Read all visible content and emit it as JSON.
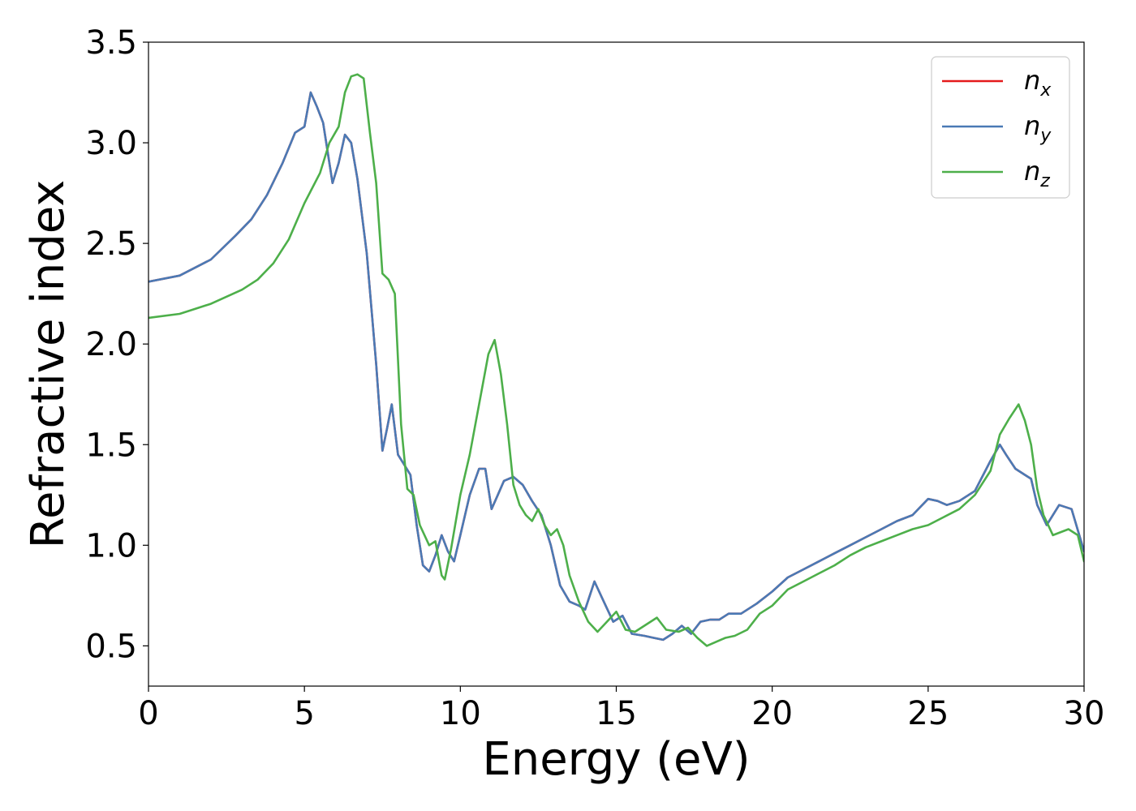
{
  "chart_data": {
    "type": "line",
    "xlabel": "Energy (eV)",
    "ylabel": "Refractive index",
    "xlim": [
      0,
      30
    ],
    "ylim": [
      0.3,
      3.5
    ],
    "xticks": [
      0,
      5,
      10,
      15,
      20,
      25,
      30
    ],
    "xtick_labels": [
      "0",
      "5",
      "10",
      "15",
      "20",
      "25",
      "30"
    ],
    "yticks": [
      0.5,
      1.0,
      1.5,
      2.0,
      2.5,
      3.0,
      3.5
    ],
    "ytick_labels": [
      "0.5",
      "1.0",
      "1.5",
      "2.0",
      "2.5",
      "3.0",
      "3.5"
    ],
    "grid": false,
    "legend_position": "top-right",
    "series": [
      {
        "name": "x",
        "legend_base": "n",
        "legend_sub": "x",
        "color": "#e41a1c",
        "x": [
          0,
          1,
          2,
          2.8,
          3.3,
          3.8,
          4.3,
          4.7,
          5.0,
          5.2,
          5.4,
          5.6,
          5.9,
          6.1,
          6.3,
          6.5,
          6.7,
          7.0,
          7.3,
          7.5,
          7.65,
          7.8,
          8.0,
          8.2,
          8.4,
          8.6,
          8.8,
          9.0,
          9.2,
          9.4,
          9.6,
          9.8,
          10.0,
          10.3,
          10.6,
          10.8,
          11.0,
          11.2,
          11.4,
          11.7,
          12.0,
          12.3,
          12.6,
          12.9,
          13.2,
          13.5,
          13.8,
          14.0,
          14.3,
          14.6,
          14.9,
          15.2,
          15.5,
          15.9,
          16.2,
          16.5,
          16.8,
          17.1,
          17.4,
          17.7,
          18.0,
          18.3,
          18.6,
          19.0,
          19.5,
          20.0,
          20.5,
          21.0,
          21.5,
          22.0,
          22.5,
          23.0,
          23.5,
          24.0,
          24.5,
          25.0,
          25.3,
          25.6,
          26.0,
          26.5,
          27.0,
          27.3,
          27.5,
          27.8,
          28.1,
          28.3,
          28.5,
          28.8,
          29.2,
          29.6,
          30.0
        ],
        "values": [
          2.31,
          2.34,
          2.42,
          2.54,
          2.62,
          2.74,
          2.9,
          3.05,
          3.08,
          3.25,
          3.18,
          3.1,
          2.8,
          2.9,
          3.04,
          3.0,
          2.82,
          2.45,
          1.9,
          1.47,
          1.58,
          1.7,
          1.45,
          1.4,
          1.35,
          1.1,
          0.9,
          0.87,
          0.95,
          1.05,
          0.97,
          0.92,
          1.05,
          1.25,
          1.38,
          1.38,
          1.18,
          1.25,
          1.32,
          1.34,
          1.3,
          1.22,
          1.15,
          1.0,
          0.8,
          0.72,
          0.7,
          0.68,
          0.82,
          0.72,
          0.62,
          0.65,
          0.56,
          0.55,
          0.54,
          0.53,
          0.56,
          0.6,
          0.56,
          0.62,
          0.63,
          0.63,
          0.66,
          0.66,
          0.71,
          0.77,
          0.84,
          0.88,
          0.92,
          0.96,
          1.0,
          1.04,
          1.08,
          1.12,
          1.15,
          1.23,
          1.22,
          1.2,
          1.22,
          1.27,
          1.42,
          1.5,
          1.45,
          1.38,
          1.35,
          1.33,
          1.2,
          1.1,
          1.2,
          1.18,
          0.97
        ]
      },
      {
        "name": "y",
        "legend_base": "n",
        "legend_sub": "y",
        "color": "#4a7ab5",
        "x": [
          0,
          1,
          2,
          2.8,
          3.3,
          3.8,
          4.3,
          4.7,
          5.0,
          5.2,
          5.4,
          5.6,
          5.9,
          6.1,
          6.3,
          6.5,
          6.7,
          7.0,
          7.3,
          7.5,
          7.65,
          7.8,
          8.0,
          8.2,
          8.4,
          8.6,
          8.8,
          9.0,
          9.2,
          9.4,
          9.6,
          9.8,
          10.0,
          10.3,
          10.6,
          10.8,
          11.0,
          11.2,
          11.4,
          11.7,
          12.0,
          12.3,
          12.6,
          12.9,
          13.2,
          13.5,
          13.8,
          14.0,
          14.3,
          14.6,
          14.9,
          15.2,
          15.5,
          15.9,
          16.2,
          16.5,
          16.8,
          17.1,
          17.4,
          17.7,
          18.0,
          18.3,
          18.6,
          19.0,
          19.5,
          20.0,
          20.5,
          21.0,
          21.5,
          22.0,
          22.5,
          23.0,
          23.5,
          24.0,
          24.5,
          25.0,
          25.3,
          25.6,
          26.0,
          26.5,
          27.0,
          27.3,
          27.5,
          27.8,
          28.1,
          28.3,
          28.5,
          28.8,
          29.2,
          29.6,
          30.0
        ],
        "values": [
          2.31,
          2.34,
          2.42,
          2.54,
          2.62,
          2.74,
          2.9,
          3.05,
          3.08,
          3.25,
          3.18,
          3.1,
          2.8,
          2.9,
          3.04,
          3.0,
          2.82,
          2.45,
          1.9,
          1.47,
          1.58,
          1.7,
          1.45,
          1.4,
          1.35,
          1.1,
          0.9,
          0.87,
          0.95,
          1.05,
          0.97,
          0.92,
          1.05,
          1.25,
          1.38,
          1.38,
          1.18,
          1.25,
          1.32,
          1.34,
          1.3,
          1.22,
          1.15,
          1.0,
          0.8,
          0.72,
          0.7,
          0.68,
          0.82,
          0.72,
          0.62,
          0.65,
          0.56,
          0.55,
          0.54,
          0.53,
          0.56,
          0.6,
          0.56,
          0.62,
          0.63,
          0.63,
          0.66,
          0.66,
          0.71,
          0.77,
          0.84,
          0.88,
          0.92,
          0.96,
          1.0,
          1.04,
          1.08,
          1.12,
          1.15,
          1.23,
          1.22,
          1.2,
          1.22,
          1.27,
          1.42,
          1.5,
          1.45,
          1.38,
          1.35,
          1.33,
          1.2,
          1.1,
          1.2,
          1.18,
          0.97
        ]
      },
      {
        "name": "z",
        "legend_base": "n",
        "legend_sub": "z",
        "color": "#4daf4a",
        "x": [
          0,
          1,
          2,
          3,
          3.5,
          4.0,
          4.5,
          5.0,
          5.5,
          5.8,
          6.1,
          6.3,
          6.5,
          6.7,
          6.9,
          7.1,
          7.3,
          7.5,
          7.7,
          7.9,
          8.1,
          8.3,
          8.5,
          8.7,
          9.0,
          9.2,
          9.4,
          9.5,
          9.7,
          10.0,
          10.3,
          10.6,
          10.9,
          11.1,
          11.3,
          11.5,
          11.7,
          11.9,
          12.1,
          12.3,
          12.5,
          12.7,
          12.9,
          13.1,
          13.3,
          13.5,
          13.8,
          14.1,
          14.4,
          14.7,
          15.0,
          15.3,
          15.6,
          16.0,
          16.3,
          16.6,
          17.0,
          17.3,
          17.6,
          17.9,
          18.2,
          18.5,
          18.8,
          19.2,
          19.6,
          20.0,
          20.5,
          21.0,
          21.5,
          22.0,
          22.5,
          23.0,
          23.5,
          24.0,
          24.5,
          25.0,
          25.5,
          26.0,
          26.5,
          27.0,
          27.3,
          27.6,
          27.9,
          28.1,
          28.3,
          28.5,
          28.7,
          29.0,
          29.5,
          29.8,
          30.0
        ],
        "values": [
          2.13,
          2.15,
          2.2,
          2.27,
          2.32,
          2.4,
          2.52,
          2.7,
          2.85,
          3.0,
          3.08,
          3.25,
          3.33,
          3.34,
          3.32,
          3.05,
          2.8,
          2.35,
          2.32,
          2.25,
          1.6,
          1.28,
          1.25,
          1.1,
          1.0,
          1.02,
          0.85,
          0.83,
          0.98,
          1.25,
          1.45,
          1.7,
          1.95,
          2.02,
          1.85,
          1.6,
          1.3,
          1.2,
          1.15,
          1.12,
          1.18,
          1.1,
          1.05,
          1.08,
          1.0,
          0.85,
          0.72,
          0.62,
          0.57,
          0.62,
          0.67,
          0.58,
          0.57,
          0.61,
          0.64,
          0.58,
          0.57,
          0.59,
          0.54,
          0.5,
          0.52,
          0.54,
          0.55,
          0.58,
          0.66,
          0.7,
          0.78,
          0.82,
          0.86,
          0.9,
          0.95,
          0.99,
          1.02,
          1.05,
          1.08,
          1.1,
          1.14,
          1.18,
          1.25,
          1.37,
          1.55,
          1.63,
          1.7,
          1.62,
          1.5,
          1.28,
          1.15,
          1.05,
          1.08,
          1.05,
          0.92
        ]
      }
    ]
  }
}
